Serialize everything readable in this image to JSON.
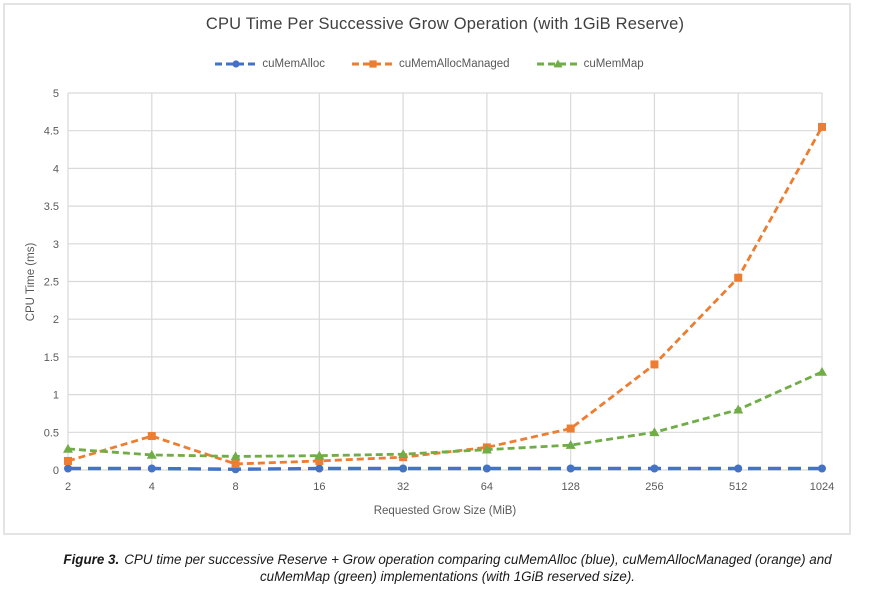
{
  "figure": {
    "caption_prefix": "Figure 3.",
    "caption_line1": "CPU time per successive Reserve + Grow operation comparing cuMemAlloc (blue), cuMemAllocManaged (orange) and",
    "caption_line2": "cuMemMap (green) implementations (with 1GiB reserved size)."
  },
  "chart_data": {
    "type": "line",
    "title": "CPU Time Per Successive Grow Operation (with 1GiB Reserve)",
    "xlabel": "Requested Grow Size (MiB)",
    "ylabel": "CPU Time (ms)",
    "categories": [
      "2",
      "4",
      "8",
      "16",
      "32",
      "64",
      "128",
      "256",
      "512",
      "1024"
    ],
    "yticks": [
      "0",
      "0.5",
      "1",
      "1.5",
      "2",
      "2.5",
      "3",
      "3.5",
      "4",
      "4.5",
      "5"
    ],
    "ylim": [
      0,
      5
    ],
    "grid": true,
    "legend_position": "top",
    "gridline_color": "#d9d9d9",
    "tick_label_color": "#595959",
    "series": [
      {
        "name": "cuMemAlloc",
        "color": "#4472c4",
        "marker": "circle",
        "dash": [
          13,
          7
        ],
        "width": 3.4,
        "values": [
          0.02,
          0.02,
          0.01,
          0.02,
          0.02,
          0.02,
          0.02,
          0.02,
          0.02,
          0.02
        ]
      },
      {
        "name": "cuMemAllocManaged",
        "color": "#ed7d31",
        "marker": "square",
        "dash": [
          7,
          4
        ],
        "width": 2.8,
        "values": [
          0.12,
          0.45,
          0.08,
          0.12,
          0.17,
          0.3,
          0.55,
          1.4,
          2.55,
          4.55
        ]
      },
      {
        "name": "cuMemMap",
        "color": "#70ad47",
        "marker": "triangle",
        "dash": [
          7,
          4
        ],
        "width": 2.8,
        "values": [
          0.28,
          0.2,
          0.18,
          0.19,
          0.21,
          0.27,
          0.33,
          0.5,
          0.8,
          1.3
        ]
      }
    ]
  }
}
